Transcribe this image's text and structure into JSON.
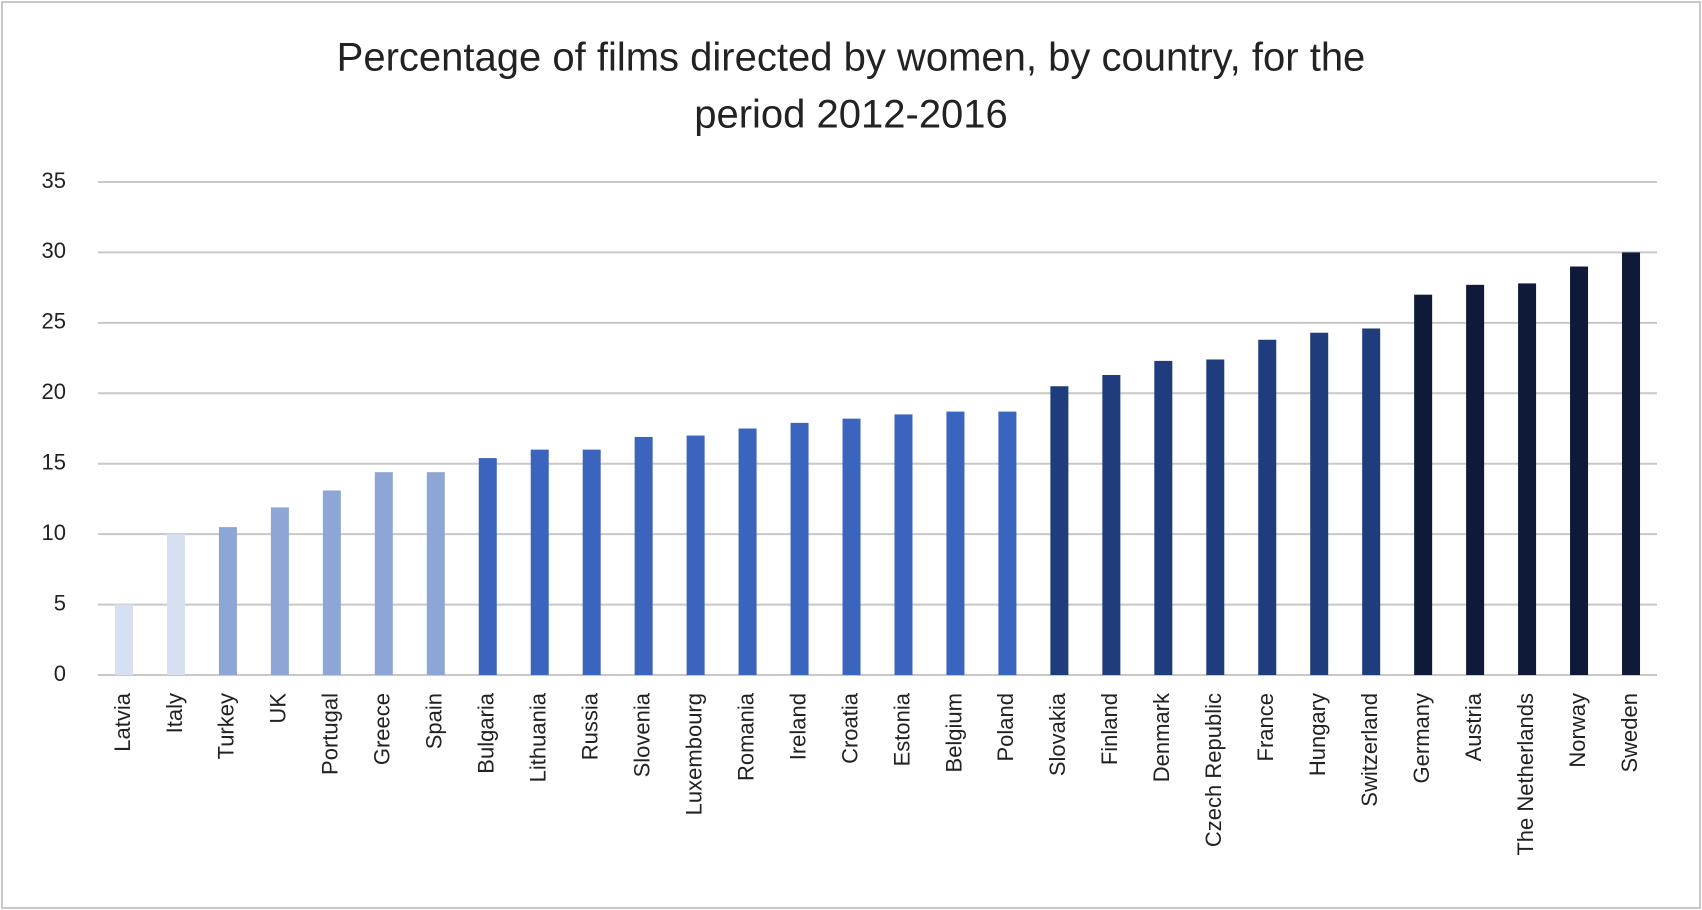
{
  "chart_data": {
    "type": "bar",
    "title": [
      "Percentage of films directed by women, by country, for the",
      "period 2012-2016"
    ],
    "categories": [
      "Latvia",
      "Italy",
      "Turkey",
      "UK",
      "Portugal",
      "Greece",
      "Spain",
      "Bulgaria",
      "Lithuania",
      "Russia",
      "Slovenia",
      "Luxembourg",
      "Romania",
      "Ireland",
      "Croatia",
      "Estonia",
      "Belgium",
      "Poland",
      "Slovakia",
      "Finland",
      "Denmark",
      "Czech Republic",
      "France",
      "Hungary",
      "Switzerland",
      "Germany",
      "Austria",
      "The Netherlands",
      "Norway",
      "Sweden"
    ],
    "values": [
      5,
      10,
      10.5,
      11.9,
      13.1,
      14.4,
      14.4,
      15.4,
      16,
      16,
      16.9,
      17,
      17.5,
      17.9,
      18.2,
      18.5,
      18.7,
      18.7,
      20.5,
      21.3,
      22.3,
      22.4,
      23.8,
      24.3,
      24.6,
      27,
      27.7,
      27.8,
      29,
      30
    ],
    "colors": [
      "#d6e0f1",
      "#d6e0f1",
      "#8ea6d6",
      "#8ea6d6",
      "#8ea6d6",
      "#8ea6d6",
      "#8ea6d6",
      "#3a64bd",
      "#3a64bd",
      "#3a64bd",
      "#3a64bd",
      "#3a64bd",
      "#3a64bd",
      "#3a64bd",
      "#3a64bd",
      "#3a64bd",
      "#3a64bd",
      "#3a64bd",
      "#1f3d7c",
      "#1f3d7c",
      "#1f3d7c",
      "#1f3d7c",
      "#1f3d7c",
      "#1f3d7c",
      "#1f3d7c",
      "#0f1938",
      "#0f1938",
      "#0f1938",
      "#0f1938",
      "#0f1938"
    ],
    "ylim": [
      0,
      35
    ],
    "yticks": [
      0,
      5,
      10,
      15,
      20,
      25,
      30,
      35
    ],
    "grid": true
  }
}
